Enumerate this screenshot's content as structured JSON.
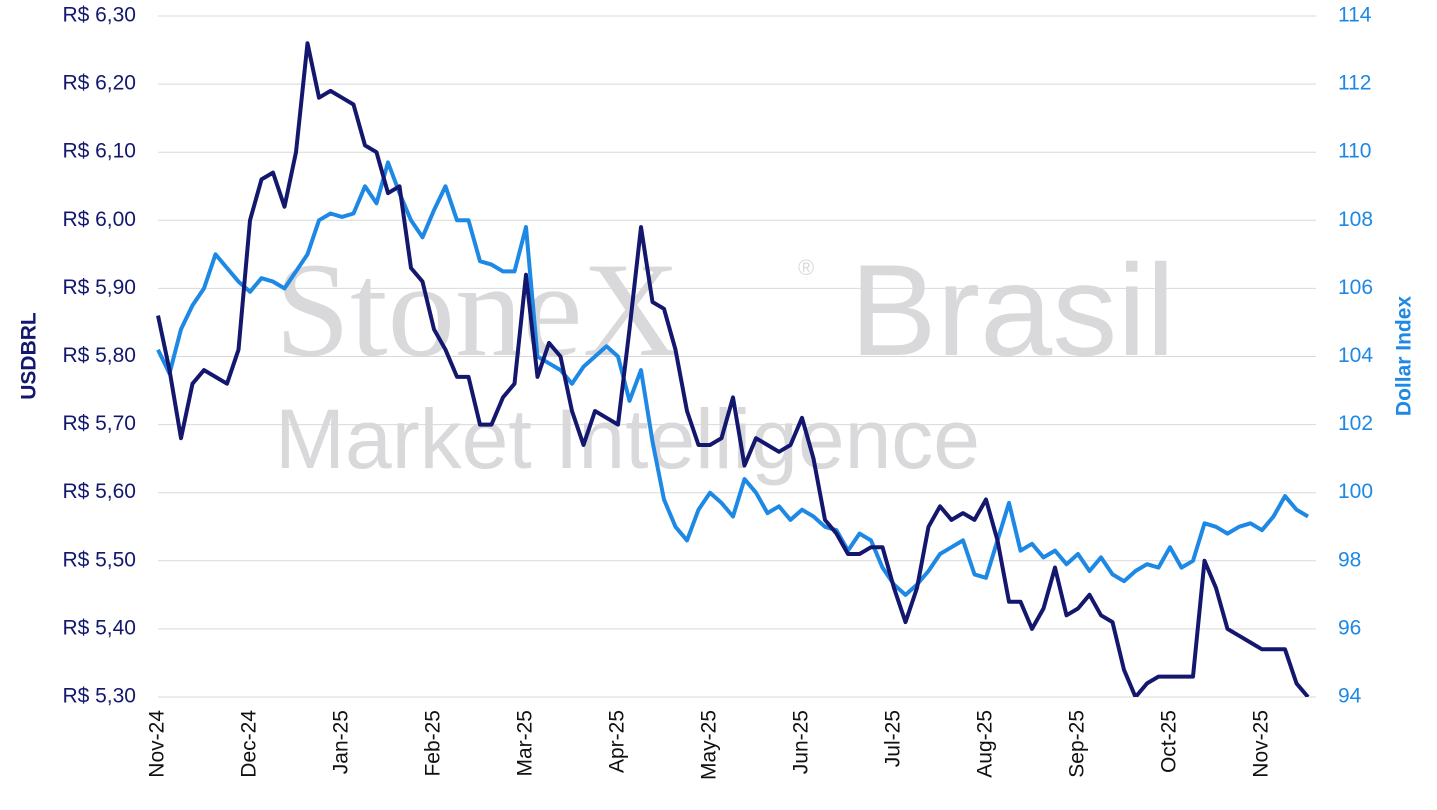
{
  "chart_data": {
    "type": "line",
    "ylabel": "USDBRL",
    "y2label": "Dollar Index",
    "watermark": {
      "brand": "StoneX",
      "mark": "®",
      "region": "Brasil",
      "tagline": "Market Intelligence"
    },
    "categories": [
      "Nov-24",
      null,
      null,
      null,
      null,
      null,
      null,
      null,
      "Dec-24",
      null,
      null,
      null,
      null,
      null,
      null,
      null,
      "Jan-25",
      null,
      null,
      null,
      null,
      null,
      null,
      null,
      "Feb-25",
      null,
      null,
      null,
      null,
      null,
      null,
      null,
      "Mar-25",
      null,
      null,
      null,
      null,
      null,
      null,
      null,
      "Apr-25",
      null,
      null,
      null,
      null,
      null,
      null,
      null,
      "May-25",
      null,
      null,
      null,
      null,
      null,
      null,
      null,
      "Jun-25",
      null,
      null,
      null,
      null,
      null,
      null,
      null,
      "Jul-25",
      null,
      null,
      null,
      null,
      null,
      null,
      null,
      "Aug-25",
      null,
      null,
      null,
      null,
      null,
      null,
      null,
      "Sep-25",
      null,
      null,
      null,
      null,
      null,
      null,
      null,
      "Oct-25",
      null,
      null,
      null,
      null,
      null,
      null,
      null,
      "Nov-25",
      null,
      null,
      null,
      null
    ],
    "series": [
      {
        "color": "#13186e",
        "axis": "y",
        "values": [
          5.86,
          5.78,
          5.68,
          5.76,
          5.78,
          5.77,
          5.76,
          5.81,
          6.0,
          6.06,
          6.07,
          6.02,
          6.1,
          6.26,
          6.18,
          6.19,
          6.18,
          6.17,
          6.11,
          6.1,
          6.04,
          6.05,
          5.93,
          5.91,
          5.84,
          5.81,
          5.77,
          5.77,
          5.7,
          5.7,
          5.74,
          5.76,
          5.92,
          5.77,
          5.82,
          5.8,
          5.72,
          5.67,
          5.72,
          5.71,
          5.7,
          5.84,
          5.99,
          5.88,
          5.87,
          5.81,
          5.72,
          5.67,
          5.67,
          5.68,
          5.74,
          5.64,
          5.68,
          5.67,
          5.66,
          5.67,
          5.71,
          5.65,
          5.56,
          5.54,
          5.51,
          5.51,
          5.52,
          5.52,
          5.46,
          5.41,
          5.46,
          5.55,
          5.58,
          5.56,
          5.57,
          5.56,
          5.59,
          5.53,
          5.44,
          5.44,
          5.4,
          5.43,
          5.49,
          5.42,
          5.43,
          5.45,
          5.42,
          5.41,
          5.34,
          5.3,
          5.32,
          5.33,
          5.33,
          5.33,
          5.33,
          5.5,
          5.46,
          5.4,
          5.39,
          5.38,
          5.37,
          5.37,
          5.37,
          5.32,
          5.3
        ]
      },
      {
        "color": "#1e88e5",
        "axis": "y2",
        "values": [
          104.2,
          103.5,
          104.8,
          105.5,
          106.0,
          107.0,
          106.6,
          106.2,
          105.9,
          106.3,
          106.2,
          106.0,
          106.5,
          107.0,
          108.0,
          108.2,
          108.1,
          108.2,
          109.0,
          108.5,
          109.7,
          108.8,
          108.0,
          107.5,
          108.3,
          109.0,
          108.0,
          108.0,
          106.8,
          106.7,
          106.5,
          106.5,
          107.8,
          104.0,
          103.8,
          103.6,
          103.2,
          103.7,
          104.0,
          104.3,
          104.0,
          102.7,
          103.6,
          101.5,
          99.8,
          99.0,
          98.6,
          99.5,
          100.0,
          99.7,
          99.3,
          100.4,
          100.0,
          99.4,
          99.6,
          99.2,
          99.5,
          99.3,
          99.0,
          98.9,
          98.3,
          98.8,
          98.6,
          97.8,
          97.3,
          97.0,
          97.3,
          97.7,
          98.2,
          98.4,
          98.6,
          97.6,
          97.5,
          98.6,
          99.7,
          98.3,
          98.5,
          98.1,
          98.3,
          97.9,
          98.2,
          97.7,
          98.1,
          97.6,
          97.4,
          97.7,
          97.9,
          97.8,
          98.4,
          97.8,
          98.0,
          99.1,
          99.0,
          98.8,
          99.0,
          99.1,
          98.9,
          99.3,
          99.9,
          99.5,
          99.3
        ]
      }
    ],
    "ylim": [
      5.3,
      6.3
    ],
    "yticks": [
      {
        "value": 5.3,
        "label": "R$ 5,30"
      },
      {
        "value": 5.4,
        "label": "R$ 5,40"
      },
      {
        "value": 5.5,
        "label": "R$ 5,50"
      },
      {
        "value": 5.6,
        "label": "R$ 5,60"
      },
      {
        "value": 5.7,
        "label": "R$ 5,70"
      },
      {
        "value": 5.8,
        "label": "R$ 5,80"
      },
      {
        "value": 5.9,
        "label": "R$ 5,90"
      },
      {
        "value": 6.0,
        "label": "R$ 6,00"
      },
      {
        "value": 6.1,
        "label": "R$ 6,10"
      },
      {
        "value": 6.2,
        "label": "R$ 6,20"
      },
      {
        "value": 6.3,
        "label": "R$ 6,30"
      }
    ],
    "y2lim": [
      94,
      114
    ],
    "y2ticks": [
      94,
      96,
      98,
      100,
      102,
      104,
      106,
      108,
      110,
      112,
      114
    ],
    "grid": true
  }
}
